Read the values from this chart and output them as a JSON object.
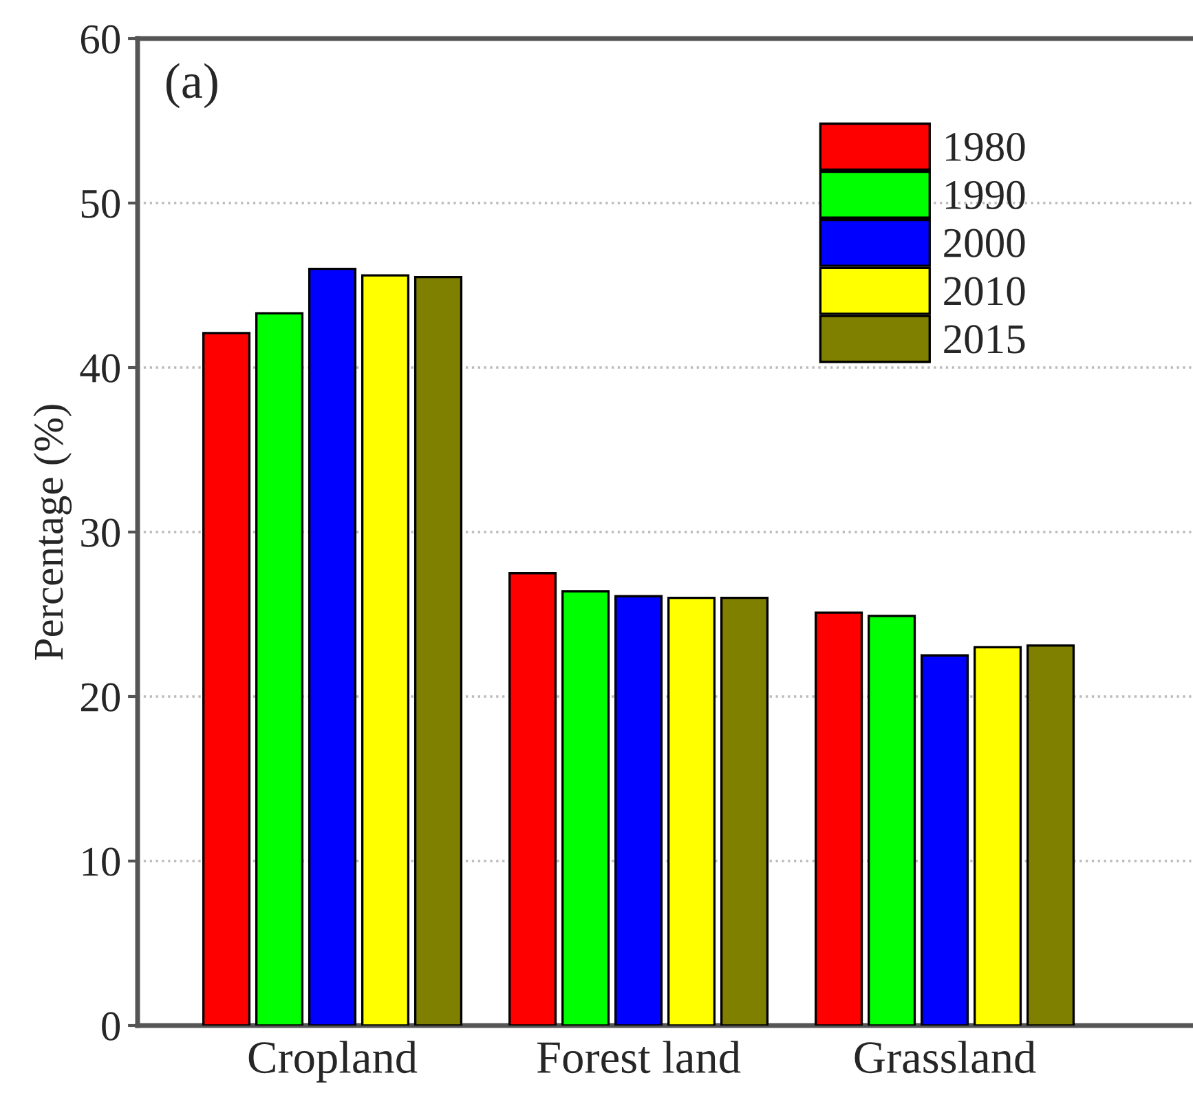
{
  "chart_data": {
    "type": "bar",
    "ylabel": "Percentage (%)",
    "annotations": [
      "(a)"
    ],
    "categories": [
      "Cropland",
      "Forest land",
      "Grassland"
    ],
    "series": [
      {
        "name": "1980",
        "color": "#ff0000",
        "values": [
          42.1,
          27.5,
          25.1
        ]
      },
      {
        "name": "1990",
        "color": "#00ff00",
        "values": [
          43.3,
          26.4,
          24.9
        ]
      },
      {
        "name": "2000",
        "color": "#0000ff",
        "values": [
          46.0,
          26.1,
          22.5
        ]
      },
      {
        "name": "2010",
        "color": "#ffff00",
        "values": [
          45.6,
          26.0,
          23.0
        ]
      },
      {
        "name": "2015",
        "color": "#808000",
        "values": [
          45.5,
          26.0,
          23.1
        ]
      }
    ],
    "ylim": [
      0,
      60
    ],
    "yticks": [
      0,
      10,
      20,
      30,
      40,
      50,
      60
    ],
    "grid": "y",
    "legend": "top right"
  }
}
